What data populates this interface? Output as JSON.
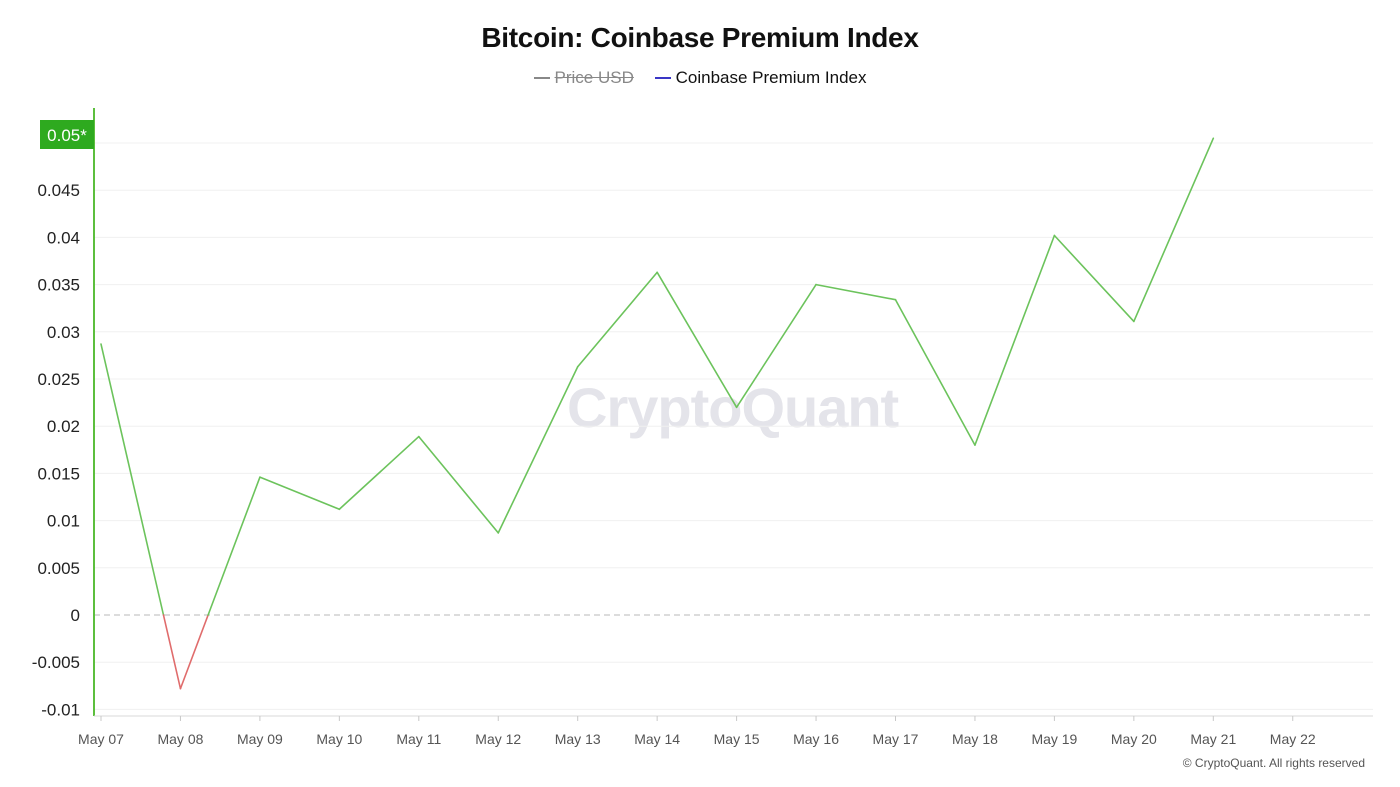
{
  "chart_data": {
    "type": "line",
    "title": "Bitcoin: Coinbase Premium Index",
    "legend": [
      {
        "name": "Price USD",
        "color": "#888888",
        "enabled": false
      },
      {
        "name": "Coinbase Premium Index",
        "color": "#3a36c6",
        "enabled": true
      }
    ],
    "categories": [
      "May 07",
      "May 08",
      "May 09",
      "May 10",
      "May 11",
      "May 12",
      "May 13",
      "May 14",
      "May 15",
      "May 16",
      "May 17",
      "May 18",
      "May 19",
      "May 20",
      "May 21",
      "May 22"
    ],
    "series": [
      {
        "name": "Coinbase Premium Index",
        "values": [
          0.0287,
          -0.0078,
          0.0146,
          0.0112,
          0.0189,
          0.0087,
          0.0263,
          0.0363,
          0.022,
          0.035,
          0.0334,
          0.018,
          0.0402,
          0.0311,
          0.0505,
          null
        ]
      }
    ],
    "yticks": [
      "-0.01",
      "-0.005",
      "0",
      "0.005",
      "0.01",
      "0.015",
      "0.02",
      "0.025",
      "0.03",
      "0.035",
      "0.04",
      "0.045"
    ],
    "ylim": [
      -0.0105,
      0.0503
    ],
    "current_value_label": "0.05*",
    "positive_color": "#6cc35c",
    "negative_color": "#e06c6c",
    "axis_color": "#5cbf3d",
    "badge_color": "#2eaa1f",
    "legend_position": "top-center",
    "grid": true
  },
  "watermark": "CryptoQuant",
  "copyright": "© CryptoQuant. All rights reserved"
}
